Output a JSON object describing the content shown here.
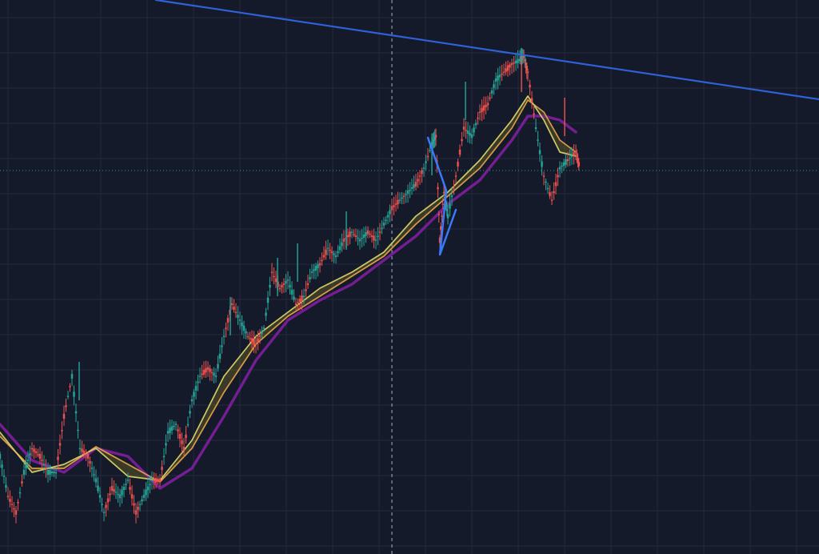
{
  "chart_data": {
    "type": "line",
    "title": "",
    "xlabel": "",
    "ylabel": "",
    "grid": true,
    "background_color": "#151a2a",
    "grid_color": "#232a3d",
    "up_color": "#26a69a",
    "down_color": "#ef5350",
    "series": [
      {
        "kind": "price",
        "x": [
          0,
          10,
          20,
          30,
          40,
          50,
          60,
          70,
          80,
          90,
          100,
          110,
          120,
          130,
          140,
          150,
          160,
          170,
          180,
          190,
          200,
          210,
          220,
          230,
          240,
          250,
          260,
          270,
          280,
          290,
          300,
          310,
          320,
          330,
          340,
          350,
          360,
          370,
          380,
          390,
          400,
          410,
          420,
          430,
          440,
          450,
          460,
          470,
          480,
          490,
          500,
          510,
          520,
          530,
          540,
          545,
          550,
          555,
          560,
          570,
          580,
          590,
          600,
          610,
          620,
          630,
          640,
          650,
          655,
          660,
          670,
          680,
          690,
          700,
          710,
          720,
          725
        ],
        "values": [
          570,
          620,
          640,
          590,
          560,
          570,
          590,
          590,
          520,
          470,
          560,
          570,
          600,
          640,
          610,
          620,
          600,
          640,
          620,
          600,
          600,
          540,
          530,
          560,
          500,
          470,
          460,
          470,
          420,
          380,
          400,
          420,
          430,
          410,
          340,
          360,
          350,
          380,
          370,
          340,
          330,
          310,
          320,
          300,
          290,
          300,
          290,
          300,
          280,
          260,
          250,
          240,
          230,
          210,
          180,
          170,
          300,
          240,
          270,
          220,
          160,
          170,
          140,
          130,
          100,
          90,
          80,
          75,
          70,
          90,
          160,
          220,
          250,
          210,
          200,
          190,
          210
        ]
      },
      {
        "kind": "ma-fast",
        "color": "#d8d46a",
        "x": [
          0,
          40,
          80,
          120,
          160,
          200,
          240,
          280,
          320,
          360,
          400,
          440,
          480,
          520,
          560,
          600,
          640,
          660,
          680,
          700,
          720
        ],
        "values": [
          540,
          590,
          580,
          560,
          595,
          600,
          550,
          470,
          420,
          390,
          360,
          340,
          315,
          270,
          240,
          200,
          150,
          120,
          150,
          190,
          195
        ]
      },
      {
        "kind": "ma-mid",
        "color": "#e3a34a",
        "x": [
          0,
          40,
          80,
          120,
          160,
          200,
          240,
          280,
          320,
          360,
          400,
          440,
          480,
          520,
          560,
          600,
          640,
          660,
          680,
          700,
          720
        ],
        "values": [
          545,
          585,
          585,
          558,
          580,
          602,
          560,
          490,
          430,
          395,
          370,
          345,
          320,
          280,
          245,
          210,
          160,
          125,
          140,
          175,
          190
        ]
      },
      {
        "kind": "ma-slow",
        "color": "#7f1f9e",
        "x": [
          0,
          40,
          80,
          120,
          160,
          200,
          240,
          280,
          320,
          360,
          400,
          440,
          480,
          520,
          560,
          600,
          640,
          660,
          680,
          700,
          720
        ],
        "values": [
          530,
          575,
          590,
          560,
          570,
          610,
          585,
          520,
          450,
          400,
          375,
          355,
          325,
          295,
          255,
          225,
          175,
          145,
          145,
          150,
          165
        ]
      }
    ],
    "overlays": [
      {
        "kind": "trendline",
        "color": "#2f61d9",
        "x": [
          195,
          1024
        ],
        "values": [
          0,
          124
        ]
      },
      {
        "kind": "pattern-line",
        "color": "#3a78ff",
        "x": [
          535,
          558,
          550,
          570
        ],
        "values": [
          172,
          238,
          318,
          262
        ]
      }
    ],
    "crosshair": {
      "vertical_x": 490,
      "horizontal_y": 213,
      "color": "#a9b2c7",
      "dotted_color": "#19a89e"
    }
  }
}
